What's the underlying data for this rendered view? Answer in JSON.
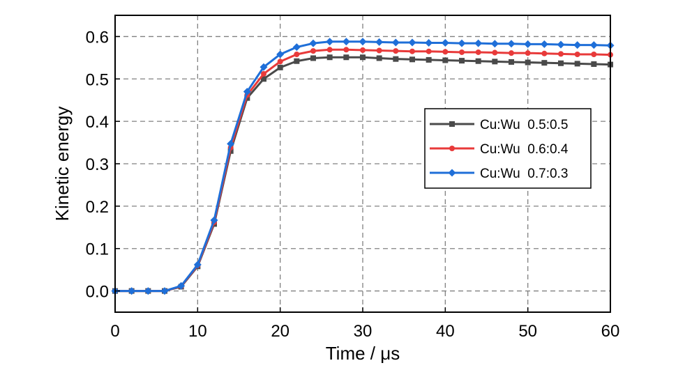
{
  "chart_data": {
    "type": "line",
    "title": "",
    "xlabel": "Time / μs",
    "ylabel": "Kinetic energy",
    "xlim": [
      0,
      60
    ],
    "ylim": [
      -0.05,
      0.65
    ],
    "xticks": [
      0,
      10,
      20,
      30,
      40,
      50,
      60
    ],
    "xtick_labels": [
      "0",
      "10",
      "20",
      "30",
      "40",
      "50",
      "60"
    ],
    "yticks": [
      0.0,
      0.1,
      0.2,
      0.3,
      0.4,
      0.5,
      0.6
    ],
    "ytick_labels": [
      "0.0",
      "0.1",
      "0.2",
      "0.3",
      "0.4",
      "0.5",
      "0.6"
    ],
    "grid": true,
    "legend_position": "right-middle",
    "x": [
      0,
      2,
      4,
      6,
      8,
      10,
      12,
      14,
      16,
      18,
      20,
      22,
      24,
      26,
      28,
      30,
      32,
      34,
      36,
      38,
      40,
      42,
      44,
      46,
      48,
      50,
      52,
      54,
      56,
      58,
      60
    ],
    "series": [
      {
        "name": "Cu:Wu  0.5:0.5",
        "color": "#4a4a4a",
        "marker": "square",
        "values": [
          0.0,
          0.0,
          0.0,
          0.0,
          0.01,
          0.058,
          0.158,
          0.33,
          0.455,
          0.5,
          0.527,
          0.542,
          0.549,
          0.551,
          0.551,
          0.551,
          0.549,
          0.547,
          0.546,
          0.545,
          0.544,
          0.543,
          0.542,
          0.541,
          0.54,
          0.539,
          0.538,
          0.537,
          0.536,
          0.535,
          0.534
        ]
      },
      {
        "name": "Cu:Wu  0.6:0.4",
        "color": "#e83a3a",
        "marker": "circle",
        "values": [
          0.0,
          0.0,
          0.0,
          0.0,
          0.011,
          0.06,
          0.162,
          0.338,
          0.462,
          0.512,
          0.541,
          0.558,
          0.566,
          0.569,
          0.569,
          0.568,
          0.567,
          0.566,
          0.565,
          0.565,
          0.564,
          0.563,
          0.563,
          0.562,
          0.561,
          0.561,
          0.56,
          0.559,
          0.558,
          0.558,
          0.557
        ]
      },
      {
        "name": "Cu:Wu  0.7:0.3",
        "color": "#1f6fd8",
        "marker": "diamond",
        "values": [
          0.0,
          0.0,
          0.0,
          0.0,
          0.012,
          0.062,
          0.167,
          0.347,
          0.47,
          0.528,
          0.558,
          0.575,
          0.584,
          0.588,
          0.588,
          0.588,
          0.587,
          0.586,
          0.586,
          0.585,
          0.585,
          0.584,
          0.584,
          0.583,
          0.583,
          0.582,
          0.582,
          0.581,
          0.58,
          0.58,
          0.579
        ]
      }
    ]
  }
}
